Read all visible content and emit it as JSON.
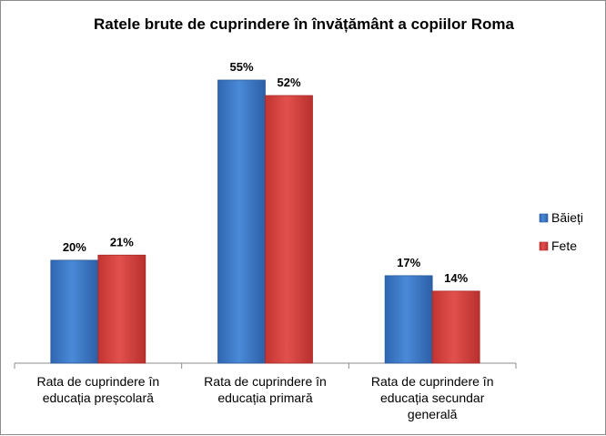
{
  "chart_data": {
    "type": "bar",
    "title": "Ratele brute de cuprindere în învățământ a copiilor Roma",
    "categories": [
      [
        "Rata de cuprindere în",
        "educația preșcolară"
      ],
      [
        "Rata de cuprindere în",
        "educația primară"
      ],
      [
        "Rata de cuprindere în",
        "educația secundar",
        "generală"
      ]
    ],
    "series": [
      {
        "name": "Băieți",
        "values": [
          20,
          55,
          17
        ],
        "labels": [
          "20%",
          "55%",
          "17%"
        ],
        "color": "#3a78c9"
      },
      {
        "name": "Fete",
        "values": [
          21,
          52,
          14
        ],
        "labels": [
          "21%",
          "52%",
          "14%"
        ],
        "color": "#d9403e"
      }
    ],
    "ylim": [
      0,
      60
    ],
    "grid": false,
    "legend": "right"
  }
}
